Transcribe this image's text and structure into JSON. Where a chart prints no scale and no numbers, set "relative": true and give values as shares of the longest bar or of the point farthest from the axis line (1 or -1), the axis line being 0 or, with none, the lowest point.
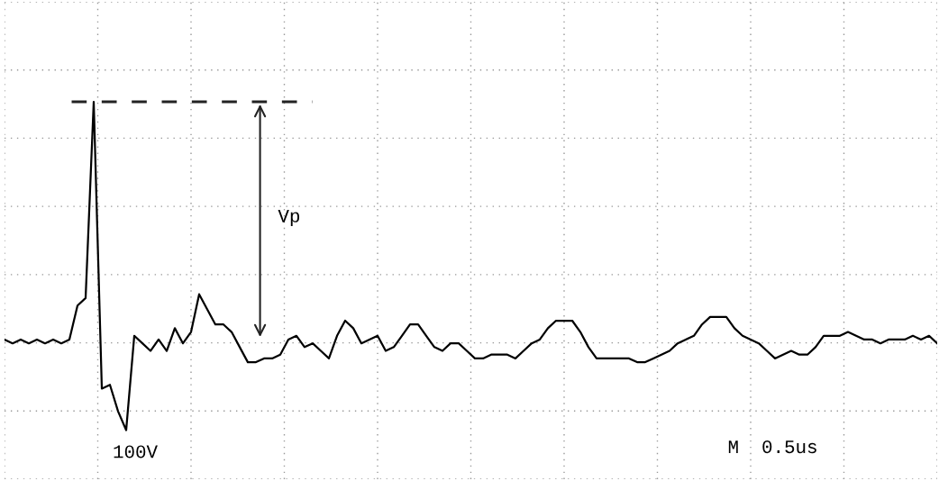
{
  "chart_data": {
    "type": "line",
    "relative": true,
    "grid": true,
    "line_style": "solid",
    "categories": [
      null,
      null,
      null,
      null,
      null,
      null,
      null,
      null,
      null,
      null,
      null,
      null,
      null,
      null,
      null,
      null,
      null,
      null,
      null,
      null,
      null,
      null,
      null,
      null,
      null,
      null,
      null,
      null,
      null,
      null,
      null,
      null,
      null,
      null,
      null,
      null,
      null,
      null,
      null,
      null,
      null,
      null,
      null,
      null,
      null,
      null,
      null,
      null,
      null,
      null,
      null,
      null,
      null,
      null,
      null,
      null,
      null,
      null,
      null,
      null,
      null,
      null,
      null,
      null,
      null,
      null,
      null,
      null,
      null,
      null,
      null,
      null,
      null,
      null,
      null,
      null,
      null,
      null,
      null,
      null,
      null,
      null,
      null,
      null,
      null,
      null,
      null,
      null,
      null,
      null,
      null,
      null,
      null,
      null,
      null,
      null,
      null,
      null,
      null,
      null,
      null,
      null,
      null,
      null,
      null,
      null,
      null,
      null,
      null,
      null,
      null,
      null,
      null,
      null,
      null,
      null
    ],
    "series": [
      {
        "color": "#000000",
        "values": [
          0.37,
          0.36,
          0.37,
          0.36,
          0.37,
          0.36,
          0.37,
          0.36,
          0.37,
          0.46,
          0.48,
          1.0,
          0.24,
          0.25,
          0.18,
          0.13,
          0.38,
          0.36,
          0.34,
          0.37,
          0.34,
          0.4,
          0.36,
          0.39,
          0.49,
          0.45,
          0.41,
          0.41,
          0.39,
          0.35,
          0.31,
          0.31,
          0.32,
          0.32,
          0.33,
          0.37,
          0.38,
          0.35,
          0.36,
          0.34,
          0.32,
          0.38,
          0.42,
          0.4,
          0.36,
          0.37,
          0.38,
          0.34,
          0.35,
          0.38,
          0.41,
          0.41,
          0.38,
          0.35,
          0.34,
          0.36,
          0.36,
          0.34,
          0.32,
          0.32,
          0.33,
          0.33,
          0.33,
          0.32,
          0.34,
          0.36,
          0.37,
          0.4,
          0.42,
          0.42,
          0.42,
          0.39,
          0.35,
          0.32,
          0.32,
          0.32,
          0.32,
          0.32,
          0.31,
          0.31,
          0.32,
          0.33,
          0.34,
          0.36,
          0.37,
          0.38,
          0.41,
          0.43,
          0.43,
          0.43,
          0.4,
          0.38,
          0.37,
          0.36,
          0.34,
          0.32,
          0.33,
          0.34,
          0.33,
          0.33,
          0.35,
          0.38,
          0.38,
          0.38,
          0.39,
          0.38,
          0.37,
          0.37,
          0.36,
          0.37,
          0.37,
          0.37,
          0.38,
          0.37,
          0.38,
          0.36
        ]
      }
    ],
    "annotations": [
      "Vp",
      "100V",
      "M  0.5us"
    ]
  }
}
